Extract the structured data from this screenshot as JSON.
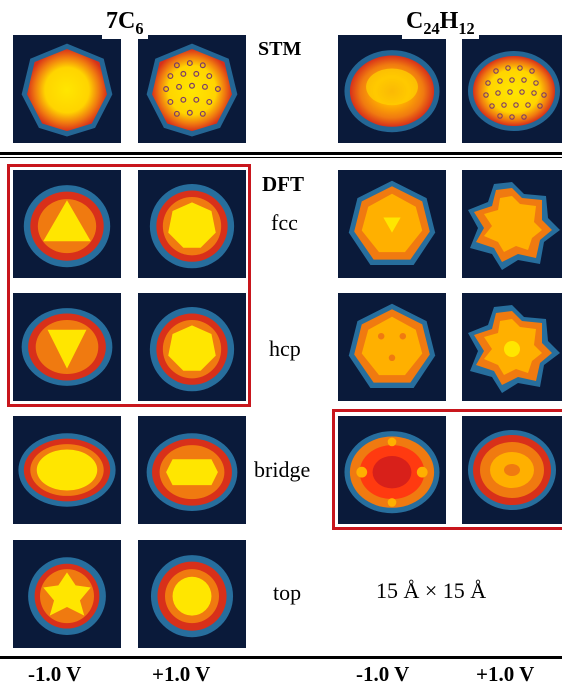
{
  "panels": {
    "molecule_left": "7C",
    "molecule_left_sub": "6",
    "molecule_right_a": "C",
    "molecule_right_a_sub": "24",
    "molecule_right_b": "H",
    "molecule_right_b_sub": "12",
    "section_stm": "STM",
    "section_dft": "DFT",
    "rows": [
      "fcc",
      "hcp",
      "bridge",
      "top"
    ],
    "scale": "15 Å × 15 Å",
    "bias_labels": [
      "-1.0 V",
      "+1.0 V",
      "-1.0 V",
      "+1.0 V"
    ]
  },
  "colors": {
    "background": "#0a1a3a",
    "highlight_frame": "#c8161d",
    "halo": "#3aa6e0",
    "outer": "#d8301a",
    "mid": "#f07a10",
    "core": "#ffe600"
  }
}
